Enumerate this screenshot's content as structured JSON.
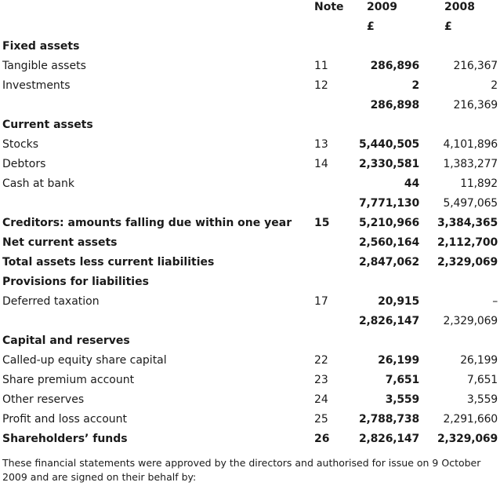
{
  "header": {
    "note": "Note",
    "year_current": "2009",
    "year_prior": "2008",
    "currency_current": "£",
    "currency_prior": "£"
  },
  "rows": [
    {
      "label": "Fixed assets",
      "note": "",
      "v2009": "",
      "v2008": "",
      "heading": true
    },
    {
      "label": "Tangible assets",
      "note": "11",
      "v2009": "286,896",
      "v2008": "216,367"
    },
    {
      "label": "Investments",
      "note": "12",
      "v2009": "2",
      "v2008": "2"
    },
    {
      "label": "",
      "note": "",
      "v2009": "286,898",
      "v2008": "216,369"
    },
    {
      "label": "Current assets",
      "note": "",
      "v2009": "",
      "v2008": "",
      "heading": true
    },
    {
      "label": "Stocks",
      "note": "13",
      "v2009": "5,440,505",
      "v2008": "4,101,896"
    },
    {
      "label": "Debtors",
      "note": "14",
      "v2009": "2,330,581",
      "v2008": "1,383,277"
    },
    {
      "label": "Cash at bank",
      "note": "",
      "v2009": "44",
      "v2008": "11,892"
    },
    {
      "label": "",
      "note": "",
      "v2009": "7,771,130",
      "v2008": "5,497,065"
    },
    {
      "label": "Creditors: amounts falling due within one year",
      "note": "15",
      "v2009": "5,210,966",
      "v2008": "3,384,365",
      "heading": true
    },
    {
      "label": "Net current assets",
      "note": "",
      "v2009": "2,560,164",
      "v2008": "2,112,700",
      "heading": true
    },
    {
      "label": "Total assets less current liabilities",
      "note": "",
      "v2009": "2,847,062",
      "v2008": "2,329,069",
      "heading": true
    },
    {
      "label": "Provisions for liabilities",
      "note": "",
      "v2009": "",
      "v2008": "",
      "heading": true
    },
    {
      "label": "Deferred taxation",
      "note": "17",
      "v2009": "20,915",
      "v2008": "–"
    },
    {
      "label": "",
      "note": "",
      "v2009": "2,826,147",
      "v2008": "2,329,069"
    },
    {
      "label": "Capital and reserves",
      "note": "",
      "v2009": "",
      "v2008": "",
      "heading": true
    },
    {
      "label": "Called-up equity share capital",
      "note": "22",
      "v2009": "26,199",
      "v2008": "26,199"
    },
    {
      "label": "Share premium account",
      "note": "23",
      "v2009": "7,651",
      "v2008": "7,651"
    },
    {
      "label": "Other reserves",
      "note": "24",
      "v2009": "3,559",
      "v2008": "3,559"
    },
    {
      "label": "Profit and loss account",
      "note": "25",
      "v2009": "2,788,738",
      "v2008": "2,291,660"
    },
    {
      "label": "Shareholders’ funds",
      "note": "26",
      "v2009": "2,826,147",
      "v2008": "2,329,069",
      "heading": true
    }
  ],
  "footer": "These financial statements were approved by the directors and authorised for issue on 9 October 2009 and are signed on their behalf by:"
}
